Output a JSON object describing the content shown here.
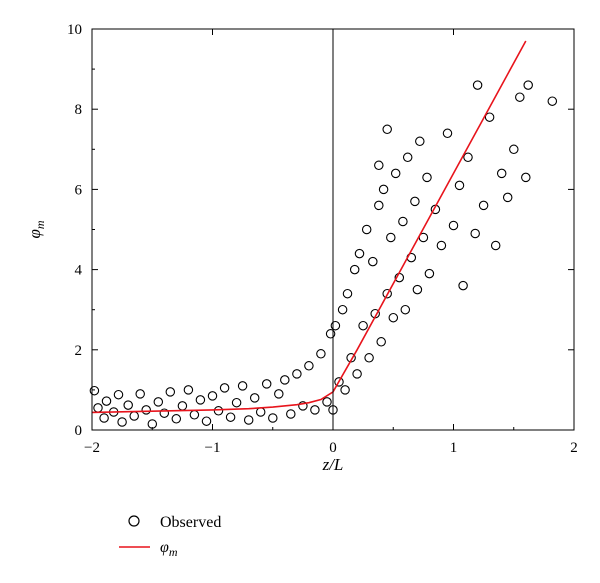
{
  "chart_data": {
    "type": "scatter",
    "title": "",
    "xlabel": "z/L",
    "ylabel": "φm",
    "xlim": [
      -2,
      2
    ],
    "ylim": [
      0,
      10
    ],
    "xticks": [
      -2,
      -1,
      0,
      1,
      2
    ],
    "xtick_labels": [
      "−2",
      "−1",
      "0",
      "1",
      "2"
    ],
    "yticks": [
      0,
      2,
      4,
      6,
      8,
      10
    ],
    "ytick_labels": [
      "0",
      "2",
      "4",
      "6",
      "8",
      "10"
    ],
    "grid": false,
    "reference_line_x": 0,
    "legend": {
      "placement": "below-left",
      "entries": [
        {
          "label": "Observed",
          "marker": "open-circle"
        },
        {
          "label": "φm",
          "marker": "line",
          "color": "#e8141c"
        }
      ]
    },
    "series": [
      {
        "name": "Observed",
        "kind": "scatter",
        "marker": "open-circle",
        "color": "#000000",
        "points": [
          [
            -1.98,
            0.98
          ],
          [
            -1.95,
            0.55
          ],
          [
            -1.9,
            0.3
          ],
          [
            -1.88,
            0.72
          ],
          [
            -1.82,
            0.45
          ],
          [
            -1.78,
            0.88
          ],
          [
            -1.75,
            0.2
          ],
          [
            -1.7,
            0.62
          ],
          [
            -1.65,
            0.35
          ],
          [
            -1.6,
            0.9
          ],
          [
            -1.55,
            0.5
          ],
          [
            -1.5,
            0.15
          ],
          [
            -1.45,
            0.7
          ],
          [
            -1.4,
            0.42
          ],
          [
            -1.35,
            0.95
          ],
          [
            -1.3,
            0.28
          ],
          [
            -1.25,
            0.6
          ],
          [
            -1.2,
            1.0
          ],
          [
            -1.15,
            0.38
          ],
          [
            -1.1,
            0.75
          ],
          [
            -1.05,
            0.22
          ],
          [
            -1.0,
            0.85
          ],
          [
            -0.95,
            0.48
          ],
          [
            -0.9,
            1.05
          ],
          [
            -0.85,
            0.32
          ],
          [
            -0.8,
            0.68
          ],
          [
            -0.75,
            1.1
          ],
          [
            -0.7,
            0.25
          ],
          [
            -0.65,
            0.8
          ],
          [
            -0.6,
            0.45
          ],
          [
            -0.55,
            1.15
          ],
          [
            -0.5,
            0.3
          ],
          [
            -0.45,
            0.9
          ],
          [
            -0.4,
            1.25
          ],
          [
            -0.35,
            0.4
          ],
          [
            -0.3,
            1.4
          ],
          [
            -0.25,
            0.6
          ],
          [
            -0.2,
            1.6
          ],
          [
            -0.15,
            0.5
          ],
          [
            -0.1,
            1.9
          ],
          [
            -0.05,
            0.7
          ],
          [
            -0.02,
            2.4
          ],
          [
            0.0,
            0.5
          ],
          [
            0.02,
            2.6
          ],
          [
            0.05,
            1.2
          ],
          [
            0.08,
            3.0
          ],
          [
            0.1,
            1.0
          ],
          [
            0.12,
            3.4
          ],
          [
            0.15,
            1.8
          ],
          [
            0.18,
            4.0
          ],
          [
            0.2,
            1.4
          ],
          [
            0.22,
            4.4
          ],
          [
            0.25,
            2.6
          ],
          [
            0.28,
            5.0
          ],
          [
            0.3,
            1.8
          ],
          [
            0.33,
            4.2
          ],
          [
            0.35,
            2.9
          ],
          [
            0.38,
            5.6
          ],
          [
            0.4,
            2.2
          ],
          [
            0.42,
            6.0
          ],
          [
            0.45,
            3.4
          ],
          [
            0.48,
            4.8
          ],
          [
            0.5,
            2.8
          ],
          [
            0.52,
            6.4
          ],
          [
            0.55,
            3.8
          ],
          [
            0.58,
            5.2
          ],
          [
            0.6,
            3.0
          ],
          [
            0.62,
            6.8
          ],
          [
            0.65,
            4.3
          ],
          [
            0.68,
            5.7
          ],
          [
            0.7,
            3.5
          ],
          [
            0.72,
            7.2
          ],
          [
            0.75,
            4.8
          ],
          [
            0.78,
            6.3
          ],
          [
            0.8,
            3.9
          ],
          [
            0.85,
            5.5
          ],
          [
            0.9,
            4.6
          ],
          [
            0.95,
            7.4
          ],
          [
            1.0,
            5.1
          ],
          [
            1.05,
            6.1
          ],
          [
            1.08,
            3.6
          ],
          [
            1.12,
            6.8
          ],
          [
            1.18,
            4.9
          ],
          [
            1.2,
            8.6
          ],
          [
            1.25,
            5.6
          ],
          [
            1.3,
            7.8
          ],
          [
            1.35,
            4.6
          ],
          [
            1.4,
            6.4
          ],
          [
            1.45,
            5.8
          ],
          [
            1.5,
            7.0
          ],
          [
            1.55,
            8.3
          ],
          [
            1.6,
            6.3
          ],
          [
            1.62,
            8.6
          ],
          [
            1.82,
            8.2
          ],
          [
            0.38,
            6.6
          ],
          [
            0.45,
            7.5
          ]
        ]
      },
      {
        "name": "φm",
        "kind": "line",
        "color": "#e8141c",
        "x": [
          -2.0,
          -1.5,
          -1.0,
          -0.7,
          -0.5,
          -0.3,
          -0.2,
          -0.1,
          0.0,
          0.2,
          0.4,
          0.6,
          0.8,
          1.0,
          1.2,
          1.4,
          1.6
        ],
        "y": [
          0.44,
          0.47,
          0.5,
          0.53,
          0.57,
          0.63,
          0.68,
          0.76,
          0.95,
          2.0,
          3.1,
          4.2,
          5.3,
          6.4,
          7.5,
          8.6,
          9.7
        ]
      }
    ]
  }
}
